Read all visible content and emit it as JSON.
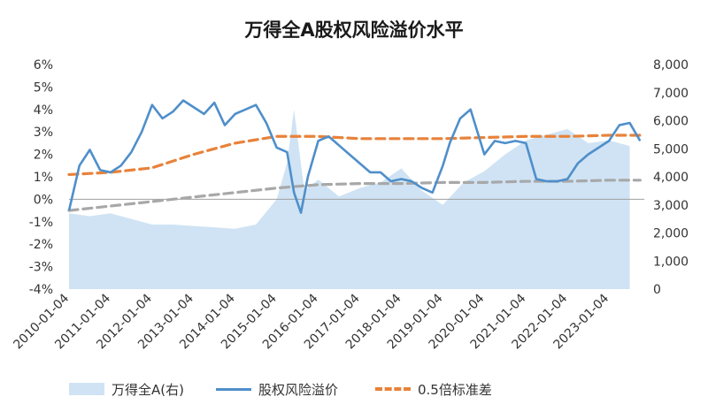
{
  "chart_data": {
    "type": "line",
    "title": "万得全A股权风险溢价水平",
    "x": [
      "2010-01-04",
      "2011-01-04",
      "2012-01-04",
      "2013-01-04",
      "2014-01-04",
      "2015-01-04",
      "2016-01-04",
      "2017-01-04",
      "2018-01-04",
      "2019-01-04",
      "2020-01-04",
      "2021-01-04",
      "2022-01-04",
      "2023-01-04"
    ],
    "x_tick_labels": [
      "2010-01-04",
      "2011-01-04",
      "2012-01-04",
      "2013-01-04",
      "2014-01-04",
      "2015-01-04",
      "2016-01-04",
      "2017-01-04",
      "2018-01-04",
      "2019-01-04",
      "2020-01-04",
      "2021-01-04",
      "2022-01-04",
      "2023-01-04"
    ],
    "y_left": {
      "ylim": [
        -4,
        6
      ],
      "tick_labels": [
        "-4%",
        "-3%",
        "-2%",
        "-1%",
        "0%",
        "1%",
        "2%",
        "3%",
        "4%",
        "5%",
        "6%"
      ]
    },
    "y_right": {
      "ylim": [
        0,
        8000
      ],
      "tick_labels": [
        "0",
        "1,000",
        "2,000",
        "3,000",
        "4,000",
        "5,000",
        "6,000",
        "7,000",
        "8,000"
      ]
    },
    "series": [
      {
        "name": "万得全A(右)",
        "kind": "area",
        "axis": "right",
        "color": "#cfe3f4",
        "x": [
          "2010-01",
          "2010-07",
          "2011-01",
          "2011-07",
          "2012-01",
          "2012-07",
          "2013-01",
          "2013-07",
          "2014-01",
          "2014-07",
          "2015-01",
          "2015-04",
          "2015-06",
          "2015-09",
          "2016-01",
          "2016-07",
          "2017-01",
          "2017-07",
          "2018-01",
          "2018-07",
          "2019-01",
          "2019-07",
          "2020-01",
          "2020-07",
          "2021-01",
          "2021-07",
          "2022-01",
          "2022-07",
          "2023-01",
          "2023-07"
        ],
        "values": [
          2700,
          2600,
          2700,
          2500,
          2300,
          2300,
          2250,
          2200,
          2150,
          2300,
          3200,
          4500,
          6400,
          3500,
          3900,
          3300,
          3600,
          3800,
          4300,
          3500,
          3000,
          3800,
          4200,
          4800,
          5300,
          5500,
          5700,
          5200,
          5300,
          5100
        ]
      },
      {
        "name": "股权风险溢价",
        "kind": "line",
        "axis": "left",
        "color": "#4f8fca",
        "x": [
          "2010-01",
          "2010-04",
          "2010-07",
          "2010-10",
          "2011-01",
          "2011-04",
          "2011-07",
          "2011-10",
          "2012-01",
          "2012-04",
          "2012-07",
          "2012-10",
          "2013-01",
          "2013-04",
          "2013-07",
          "2013-10",
          "2014-01",
          "2014-04",
          "2014-07",
          "2014-10",
          "2015-01",
          "2015-04",
          "2015-06",
          "2015-08",
          "2015-10",
          "2016-01",
          "2016-04",
          "2016-07",
          "2016-10",
          "2017-01",
          "2017-04",
          "2017-07",
          "2017-10",
          "2018-01",
          "2018-04",
          "2018-07",
          "2018-10",
          "2019-01",
          "2019-03",
          "2019-06",
          "2019-09",
          "2020-01",
          "2020-04",
          "2020-07",
          "2020-10",
          "2021-01",
          "2021-04",
          "2021-07",
          "2021-10",
          "2022-01",
          "2022-04",
          "2022-07",
          "2022-10",
          "2023-01",
          "2023-04",
          "2023-07",
          "2023-10"
        ],
        "values": [
          -0.5,
          1.5,
          2.2,
          1.3,
          1.2,
          1.5,
          2.1,
          3.0,
          4.2,
          3.6,
          3.9,
          4.4,
          4.1,
          3.8,
          4.3,
          3.3,
          3.8,
          4.0,
          4.2,
          3.4,
          2.3,
          2.1,
          0.3,
          -0.6,
          1.0,
          2.6,
          2.8,
          2.4,
          2.0,
          1.6,
          1.2,
          1.2,
          0.8,
          0.9,
          0.8,
          0.5,
          0.3,
          1.5,
          2.5,
          3.6,
          4.0,
          2.0,
          2.6,
          2.5,
          2.6,
          2.5,
          0.9,
          0.8,
          0.8,
          0.9,
          1.6,
          2.0,
          2.3,
          2.6,
          3.3,
          3.4,
          2.6
        ]
      },
      {
        "name": "0.5倍标准差",
        "kind": "dashed",
        "axis": "left",
        "color": "#e8823a",
        "x": [
          "2010-01",
          "2011-01",
          "2012-01",
          "2013-01",
          "2014-01",
          "2015-01",
          "2016-01",
          "2017-01",
          "2018-01",
          "2019-01",
          "2020-01",
          "2021-01",
          "2022-01",
          "2023-01",
          "2023-10"
        ],
        "values": [
          1.1,
          1.2,
          1.4,
          2.0,
          2.5,
          2.8,
          2.8,
          2.7,
          2.7,
          2.7,
          2.75,
          2.8,
          2.8,
          2.85,
          2.85
        ]
      },
      {
        "name": "",
        "kind": "dashed",
        "axis": "left",
        "color": "#a8a8a8",
        "x": [
          "2010-01",
          "2011-01",
          "2012-01",
          "2013-01",
          "2014-01",
          "2015-01",
          "2016-01",
          "2017-01",
          "2018-01",
          "2019-01",
          "2020-01",
          "2021-01",
          "2022-01",
          "2023-01",
          "2023-10"
        ],
        "values": [
          -0.5,
          -0.3,
          -0.1,
          0.1,
          0.3,
          0.5,
          0.65,
          0.7,
          0.7,
          0.75,
          0.75,
          0.8,
          0.8,
          0.85,
          0.85
        ]
      }
    ],
    "legend_position": "bottom",
    "grid": false
  }
}
